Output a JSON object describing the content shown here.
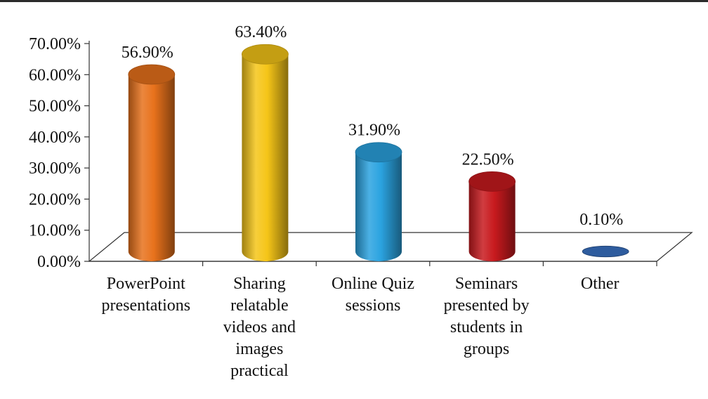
{
  "chart_data": {
    "type": "bar",
    "style": "3d-cylinder",
    "title": "",
    "xlabel": "",
    "ylabel": "",
    "ylim": [
      0,
      70
    ],
    "y_ticks": [
      "0.00%",
      "10.00%",
      "20.00%",
      "30.00%",
      "40.00%",
      "50.00%",
      "60.00%",
      "70.00%"
    ],
    "categories": [
      [
        "PowerPoint",
        "presentations"
      ],
      [
        "Sharing",
        "relatable",
        "videos and",
        "images",
        "practical"
      ],
      [
        "Online Quiz",
        "sessions"
      ],
      [
        "Seminars",
        "presented by",
        "students in",
        "groups"
      ],
      [
        "Other"
      ]
    ],
    "values": [
      56.9,
      63.4,
      31.9,
      22.5,
      0.1
    ],
    "value_labels": [
      "56.90%",
      "63.40%",
      "31.90%",
      "22.50%",
      "0.10%"
    ],
    "colors": [
      "#E8721C",
      "#F5C518",
      "#2BA3E0",
      "#C81A1E",
      "#2E5C9E"
    ],
    "grid": false,
    "legend": "none"
  }
}
